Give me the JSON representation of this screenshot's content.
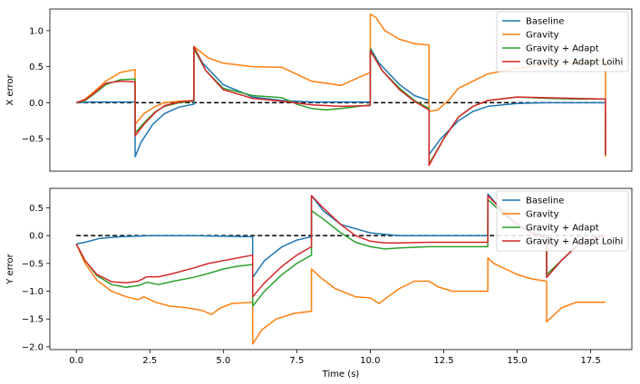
{
  "chart_data": [
    {
      "type": "line",
      "ylabel": "X error",
      "xlabel": "",
      "xlim": [
        -0.9,
        18.9
      ],
      "ylim": [
        -0.95,
        1.3
      ],
      "xticks": [],
      "yticks": [
        -0.5,
        0.0,
        0.5,
        1.0
      ],
      "ytick_labels": [
        "−0.5",
        "0.0",
        "0.5",
        "1.0"
      ],
      "reference": {
        "y": 0.0,
        "style": "dashed",
        "color": "#000000"
      },
      "legend": {
        "position": "top-right"
      },
      "series": [
        {
          "name": "Baseline",
          "color": "#1f77b4",
          "x": [
            0,
            0.5,
            1,
            1.5,
            2,
            2.001,
            2.2,
            2.6,
            3,
            3.5,
            4,
            4.001,
            4.3,
            5,
            6,
            7,
            8,
            9,
            10,
            10.001,
            10.3,
            11,
            11.5,
            12,
            12.001,
            12.4,
            13,
            13.5,
            14,
            15,
            16,
            17,
            18,
            18.001
          ],
          "y": [
            0,
            0.01,
            0.01,
            0.01,
            0.01,
            -0.75,
            -0.55,
            -0.3,
            -0.15,
            -0.06,
            -0.02,
            0.77,
            0.55,
            0.25,
            0.08,
            0.03,
            0.01,
            0.01,
            0.01,
            0.76,
            0.55,
            0.25,
            0.1,
            0.03,
            -0.72,
            -0.5,
            -0.25,
            -0.12,
            -0.05,
            -0.01,
            0.0,
            0.0,
            0.0,
            -0.75
          ]
        },
        {
          "name": "Gravity",
          "color": "#ff7f0e",
          "x": [
            0,
            0.3,
            0.6,
            1,
            1.5,
            2,
            2.001,
            2.3,
            2.7,
            3,
            3.5,
            4,
            4.001,
            4.5,
            5,
            6,
            7,
            8,
            9,
            10,
            10.001,
            10.2,
            10.5,
            11,
            11.5,
            12,
            12.001,
            12.3,
            12.7,
            13,
            14,
            15,
            16,
            17,
            18,
            18.001
          ],
          "y": [
            0,
            0.05,
            0.15,
            0.3,
            0.42,
            0.46,
            -0.3,
            -0.15,
            -0.05,
            0.0,
            0.02,
            0.03,
            0.78,
            0.62,
            0.55,
            0.5,
            0.49,
            0.3,
            0.24,
            0.42,
            1.23,
            1.18,
            1.0,
            0.88,
            0.82,
            0.8,
            -0.12,
            -0.1,
            0.05,
            0.2,
            0.4,
            0.48,
            0.52,
            0.55,
            0.58,
            -0.75
          ]
        },
        {
          "name": "Gravity + Adapt",
          "color": "#2ca02c",
          "x": [
            0,
            0.3,
            0.6,
            1,
            1.5,
            2,
            2.001,
            2.3,
            2.7,
            3,
            3.5,
            4,
            4.001,
            4.4,
            5,
            6,
            7,
            7.5,
            8,
            8.5,
            9,
            10,
            10.001,
            10.4,
            11,
            11.5,
            12,
            12.001,
            12.5,
            13,
            13.5,
            14,
            15,
            16,
            17,
            18,
            18.001
          ],
          "y": [
            0,
            0.03,
            0.12,
            0.25,
            0.32,
            0.33,
            -0.42,
            -0.28,
            -0.12,
            -0.05,
            0.0,
            0.02,
            0.75,
            0.45,
            0.2,
            0.1,
            0.07,
            -0.02,
            -0.08,
            -0.1,
            -0.08,
            -0.03,
            0.73,
            0.45,
            0.2,
            0.03,
            -0.08,
            -0.85,
            -0.5,
            -0.2,
            -0.05,
            0.03,
            0.08,
            0.06,
            0.05,
            0.05,
            -0.72
          ]
        },
        {
          "name": "Gravity + Adapt Loihi",
          "color": "#d62728",
          "x": [
            0,
            0.3,
            0.6,
            1,
            1.5,
            2,
            2.001,
            2.3,
            2.7,
            3,
            3.5,
            4,
            4.001,
            4.4,
            5,
            6,
            7,
            8,
            9,
            10,
            10.001,
            10.4,
            11,
            11.5,
            12,
            12.001,
            12.5,
            13,
            13.5,
            14,
            15,
            16,
            17,
            18,
            18.001
          ],
          "y": [
            0,
            0.04,
            0.13,
            0.27,
            0.3,
            0.29,
            -0.46,
            -0.3,
            -0.13,
            -0.04,
            0.01,
            0.03,
            0.78,
            0.45,
            0.18,
            0.06,
            0.02,
            -0.03,
            -0.05,
            -0.04,
            0.72,
            0.45,
            0.18,
            0.02,
            -0.1,
            -0.87,
            -0.5,
            -0.2,
            -0.05,
            0.03,
            0.08,
            0.07,
            0.06,
            0.05,
            -0.72
          ]
        }
      ]
    },
    {
      "type": "line",
      "ylabel": "Y error",
      "xlabel": "Time (s)",
      "xlim": [
        -0.9,
        18.9
      ],
      "ylim": [
        -2.05,
        0.85
      ],
      "xticks": [
        0,
        2.5,
        5,
        7.5,
        10,
        12.5,
        15,
        17.5
      ],
      "xtick_labels": [
        "0.0",
        "2.5",
        "5.0",
        "7.5",
        "10.0",
        "12.5",
        "15.0",
        "17.5"
      ],
      "yticks": [
        -2.0,
        -1.5,
        -1.0,
        -0.5,
        0.0,
        0.5
      ],
      "ytick_labels": [
        "−2.0",
        "−1.5",
        "−1.0",
        "−0.5",
        "0.0",
        "0.5"
      ],
      "reference": {
        "y": 0.0,
        "style": "dashed",
        "color": "#000000"
      },
      "legend": {
        "position": "top-right"
      },
      "series": [
        {
          "name": "Baseline",
          "color": "#1f77b4",
          "x": [
            0,
            0.3,
            0.8,
            1.5,
            2.5,
            4,
            6,
            6.001,
            6.4,
            7,
            7.5,
            8,
            8.001,
            8.4,
            9,
            10,
            11,
            12,
            13,
            14,
            14.001,
            14.4,
            15,
            15.5,
            16,
            16.001,
            16.5,
            17,
            17.5,
            18
          ],
          "y": [
            -0.15,
            -0.12,
            -0.05,
            -0.02,
            0.0,
            0.0,
            -0.02,
            -0.75,
            -0.45,
            -0.2,
            -0.08,
            -0.02,
            0.72,
            0.45,
            0.2,
            0.05,
            0.0,
            0.0,
            0.0,
            0.0,
            0.75,
            0.5,
            0.2,
            0.05,
            0.0,
            -0.75,
            -0.45,
            -0.2,
            -0.05,
            0.0
          ]
        },
        {
          "name": "Gravity",
          "color": "#ff7f0e",
          "x": [
            0,
            0.3,
            0.7,
            1.2,
            1.7,
            2.1,
            2.3,
            2.7,
            3.2,
            3.8,
            4.3,
            4.6,
            4.9,
            5.3,
            6,
            6.001,
            6.3,
            6.8,
            7.4,
            8,
            8.001,
            8.3,
            8.8,
            9.5,
            10,
            10.3,
            10.6,
            11,
            11.5,
            12,
            12.3,
            12.8,
            13.5,
            14,
            14.001,
            14.2,
            14.6,
            15,
            15.5,
            16,
            16.001,
            16.2,
            16.5,
            17,
            18
          ],
          "y": [
            -0.15,
            -0.5,
            -0.8,
            -1.0,
            -1.1,
            -1.15,
            -1.1,
            -1.2,
            -1.27,
            -1.3,
            -1.35,
            -1.42,
            -1.3,
            -1.22,
            -1.2,
            -1.95,
            -1.7,
            -1.5,
            -1.4,
            -1.36,
            -0.6,
            -0.75,
            -0.95,
            -1.1,
            -1.12,
            -1.22,
            -1.1,
            -0.95,
            -0.82,
            -0.82,
            -0.92,
            -1.0,
            -1.0,
            -1.0,
            -0.4,
            -0.5,
            -0.6,
            -0.7,
            -0.78,
            -0.82,
            -1.55,
            -1.45,
            -1.3,
            -1.2,
            -1.2
          ]
        },
        {
          "name": "Gravity + Adapt",
          "color": "#2ca02c",
          "x": [
            0,
            0.3,
            0.7,
            1.2,
            1.7,
            2.1,
            2.4,
            2.8,
            3.3,
            4,
            4.5,
            5,
            5.5,
            6,
            6.001,
            6.4,
            7,
            7.5,
            8,
            8.001,
            8.4,
            9,
            9.5,
            10,
            10.5,
            11,
            12,
            13,
            14,
            14.001,
            14.4,
            15,
            15.5,
            16,
            16.001,
            16.5,
            17,
            17.5,
            18
          ],
          "y": [
            -0.15,
            -0.45,
            -0.72,
            -0.88,
            -0.93,
            -0.9,
            -0.84,
            -0.88,
            -0.82,
            -0.75,
            -0.68,
            -0.6,
            -0.55,
            -0.52,
            -1.27,
            -1.0,
            -0.7,
            -0.5,
            -0.35,
            0.45,
            0.3,
            0.05,
            -0.12,
            -0.2,
            -0.24,
            -0.22,
            -0.2,
            -0.2,
            -0.2,
            0.65,
            0.45,
            0.2,
            0.05,
            -0.05,
            -0.7,
            -0.45,
            -0.2,
            -0.05,
            0.0
          ]
        },
        {
          "name": "Gravity + Adapt Loihi",
          "color": "#d62728",
          "x": [
            0,
            0.3,
            0.7,
            1.2,
            1.7,
            2.1,
            2.4,
            2.8,
            3.3,
            4,
            4.5,
            5,
            5.5,
            6,
            6.001,
            6.4,
            7,
            7.5,
            8,
            8.001,
            8.4,
            9,
            9.5,
            10,
            10.5,
            11,
            12,
            13,
            14,
            14.001,
            14.4,
            15,
            15.5,
            16,
            16.001,
            16.5,
            17,
            17.5,
            18
          ],
          "y": [
            -0.15,
            -0.45,
            -0.7,
            -0.83,
            -0.85,
            -0.82,
            -0.74,
            -0.74,
            -0.68,
            -0.58,
            -0.5,
            -0.45,
            -0.4,
            -0.35,
            -1.1,
            -0.85,
            -0.55,
            -0.35,
            -0.2,
            0.72,
            0.5,
            0.2,
            0.0,
            -0.1,
            -0.13,
            -0.13,
            -0.12,
            -0.12,
            -0.12,
            0.72,
            0.5,
            0.2,
            0.05,
            -0.05,
            -0.75,
            -0.45,
            -0.2,
            -0.05,
            0.0
          ]
        }
      ]
    }
  ]
}
